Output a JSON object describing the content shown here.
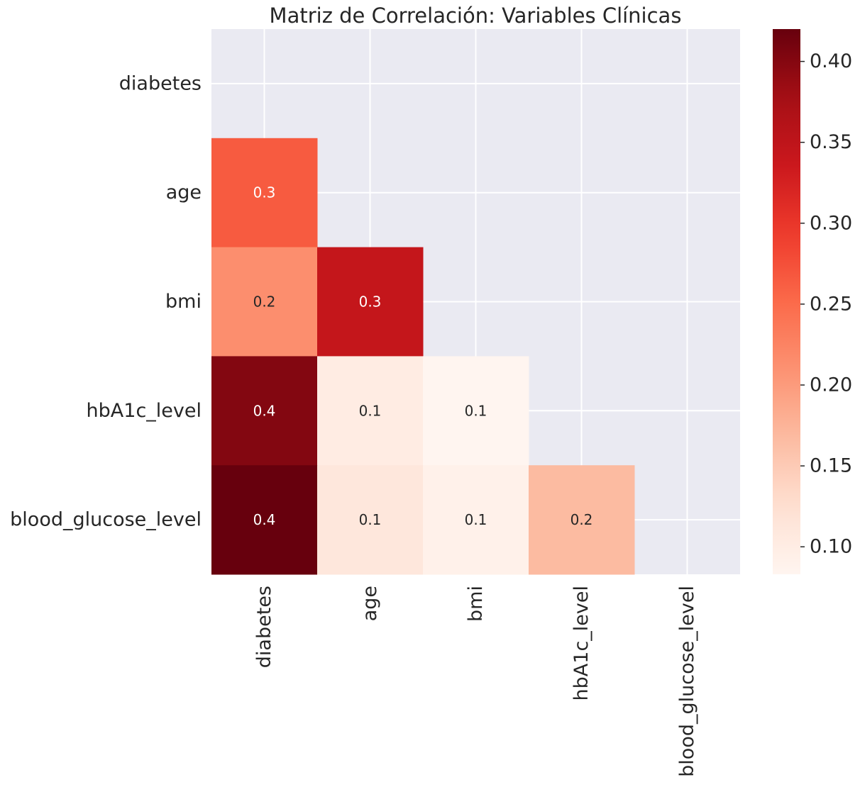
{
  "chart_data": {
    "type": "heatmap",
    "title": "Matriz de Correlación: Variables Clínicas",
    "variables": [
      "diabetes",
      "age",
      "bmi",
      "hbA1c_level",
      "blood_glucose_level"
    ],
    "mask": "upper-triangle-including-diagonal",
    "cells": [
      {
        "row": "age",
        "col": "diabetes",
        "value": 0.265,
        "label": "0.3"
      },
      {
        "row": "bmi",
        "col": "diabetes",
        "value": 0.214,
        "label": "0.2"
      },
      {
        "row": "bmi",
        "col": "age",
        "value": 0.344,
        "label": "0.3"
      },
      {
        "row": "hbA1c_level",
        "col": "diabetes",
        "value": 0.401,
        "label": "0.4"
      },
      {
        "row": "hbA1c_level",
        "col": "age",
        "value": 0.101,
        "label": "0.1"
      },
      {
        "row": "hbA1c_level",
        "col": "bmi",
        "value": 0.083,
        "label": "0.1"
      },
      {
        "row": "blood_glucose_level",
        "col": "diabetes",
        "value": 0.42,
        "label": "0.4"
      },
      {
        "row": "blood_glucose_level",
        "col": "age",
        "value": 0.111,
        "label": "0.1"
      },
      {
        "row": "blood_glucose_level",
        "col": "bmi",
        "value": 0.091,
        "label": "0.1"
      },
      {
        "row": "blood_glucose_level",
        "col": "hbA1c_level",
        "value": 0.167,
        "label": "0.2"
      }
    ],
    "colorbar": {
      "colormap": "Reds",
      "vmin": 0.083,
      "vmax": 0.42,
      "ticks": [
        0.1,
        0.15,
        0.2,
        0.25,
        0.3,
        0.35,
        0.4
      ],
      "tick_labels": [
        "0.10",
        "0.15",
        "0.20",
        "0.25",
        "0.30",
        "0.35",
        "0.40"
      ]
    },
    "grid": true,
    "background_color": "#eaeaf2"
  }
}
